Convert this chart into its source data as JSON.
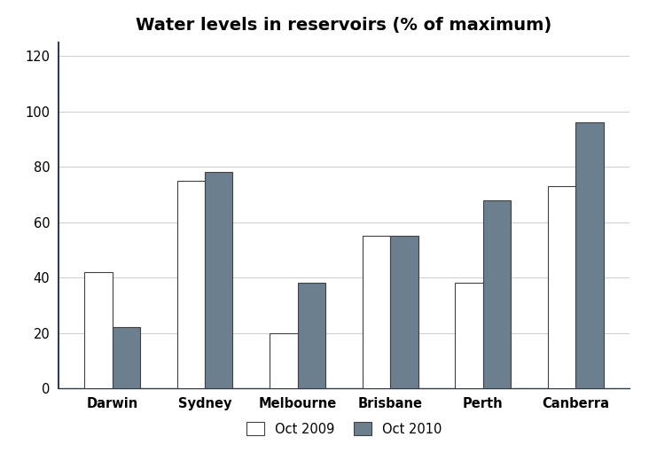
{
  "title": "Water levels in reservoirs (% of maximum)",
  "cities": [
    "Darwin",
    "Sydney",
    "Melbourne",
    "Brisbane",
    "Perth",
    "Canberra"
  ],
  "oct2009": [
    42,
    75,
    20,
    55,
    38,
    73
  ],
  "oct2010": [
    22,
    78,
    38,
    55,
    68,
    96
  ],
  "color_2009": "#ffffff",
  "color_2010": "#6c7f8e",
  "bar_edge_color": "#404040",
  "ylim": [
    0,
    125
  ],
  "yticks": [
    0,
    20,
    40,
    60,
    80,
    100,
    120
  ],
  "legend_labels": [
    "Oct 2009",
    "Oct 2010"
  ],
  "bar_width": 0.3,
  "grid_color": "#d0d0d0",
  "background_color": "#ffffff",
  "title_fontsize": 14,
  "axis_fontsize": 10.5,
  "legend_fontsize": 10.5,
  "spine_color": "#2e3d4f"
}
